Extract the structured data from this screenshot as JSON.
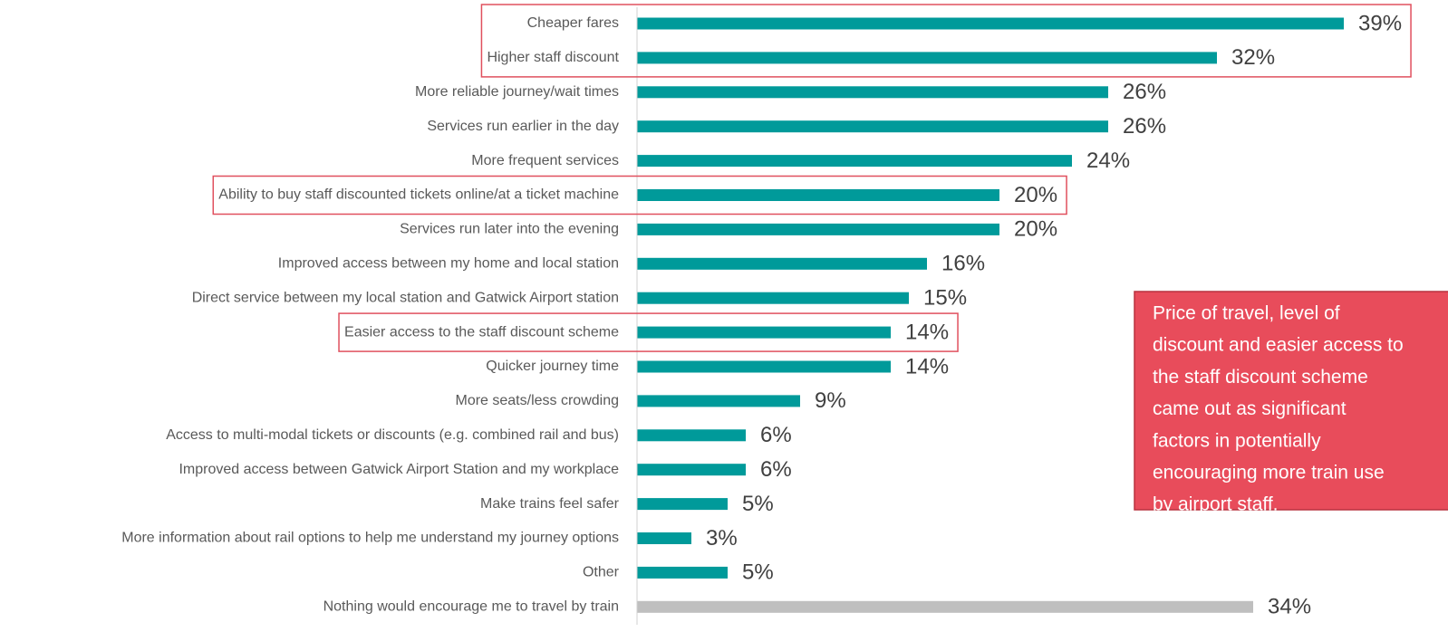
{
  "chart_data": {
    "type": "bar",
    "orientation": "horizontal",
    "categories": [
      "Cheaper fares",
      "Higher staff discount",
      "More reliable journey/wait times",
      "Services run earlier in the day",
      "More frequent services",
      "Ability to buy staff discounted tickets online/at a ticket machine",
      "Services run later into the evening",
      "Improved access between my home and local station",
      "Direct service between my local station and Gatwick Airport station",
      "Easier access to the staff discount scheme",
      "Quicker journey time",
      "More seats/less crowding",
      "Access to multi-modal tickets or discounts (e.g. combined rail and bus)",
      "Improved access between Gatwick Airport Station and my workplace",
      "Make trains feel safer",
      "More information about rail options to help me understand my journey options",
      "Other",
      "Nothing would encourage me to travel by train"
    ],
    "values": [
      39,
      32,
      26,
      26,
      24,
      20,
      20,
      16,
      15,
      14,
      14,
      9,
      6,
      6,
      5,
      3,
      5,
      34
    ],
    "value_labels": [
      "39%",
      "32%",
      "26%",
      "26%",
      "24%",
      "20%",
      "20%",
      "16%",
      "15%",
      "14%",
      "14%",
      "9%",
      "6%",
      "6%",
      "5%",
      "3%",
      "5%",
      "34%"
    ],
    "colors": [
      "#009a9a",
      "#009a9a",
      "#009a9a",
      "#009a9a",
      "#009a9a",
      "#009a9a",
      "#009a9a",
      "#009a9a",
      "#009a9a",
      "#009a9a",
      "#009a9a",
      "#009a9a",
      "#009a9a",
      "#009a9a",
      "#009a9a",
      "#009a9a",
      "#009a9a",
      "#bfbfbf"
    ],
    "xlim": [
      0,
      40
    ],
    "highlight_groups": [
      [
        0,
        1
      ],
      [
        5
      ],
      [
        9
      ]
    ],
    "highlight_color": "#e0505e",
    "annotation": {
      "lines": [
        "Price of travel, level of",
        "discount and easier access to",
        "the staff discount scheme",
        "came out as significant",
        "factors in potentially",
        "encouraging more train use",
        "by airport staff."
      ],
      "color": "#e84c5b"
    }
  }
}
